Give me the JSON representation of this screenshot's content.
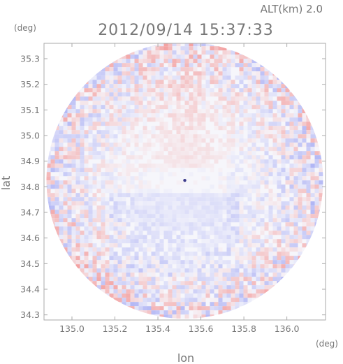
{
  "header": {
    "altitude_label": "ALT(km) 2.0",
    "datetime": "2012/09/14 15:37:33"
  },
  "colors": {
    "text": "#777777",
    "frame": "#aaaaaa",
    "base": "#f6f6fb",
    "positive": "#f3a2a2",
    "negative": "#a9aef4"
  },
  "chart_data": {
    "type": "heatmap",
    "title": "2012/09/14 15:37:33",
    "subtitle": "ALT(km) 2.0",
    "xlabel": "lon",
    "ylabel": "lat",
    "xunit": "(deg)",
    "yunit": "(deg)",
    "xlim": [
      134.87,
      136.18
    ],
    "ylim": [
      34.28,
      35.36
    ],
    "xticks": [
      135.0,
      135.2,
      135.4,
      135.6,
      135.8,
      136.0
    ],
    "xtick_labels": [
      "135.0",
      "135.2",
      "135.4",
      "135.6",
      "135.8",
      "136.0"
    ],
    "yticks": [
      34.3,
      34.4,
      34.5,
      34.6,
      34.7,
      34.8,
      34.9,
      35.0,
      35.1,
      35.2,
      35.3
    ],
    "ytick_labels": [
      "34.3",
      "34.4",
      "34.5",
      "34.6",
      "34.7",
      "34.8",
      "34.9",
      "35.0",
      "35.1",
      "35.2",
      "35.3"
    ],
    "coverage": {
      "shape": "circle",
      "center_lon": 135.525,
      "center_lat": 34.825,
      "radius_deg_lat": 0.54
    },
    "grid": false,
    "legend": "none"
  }
}
